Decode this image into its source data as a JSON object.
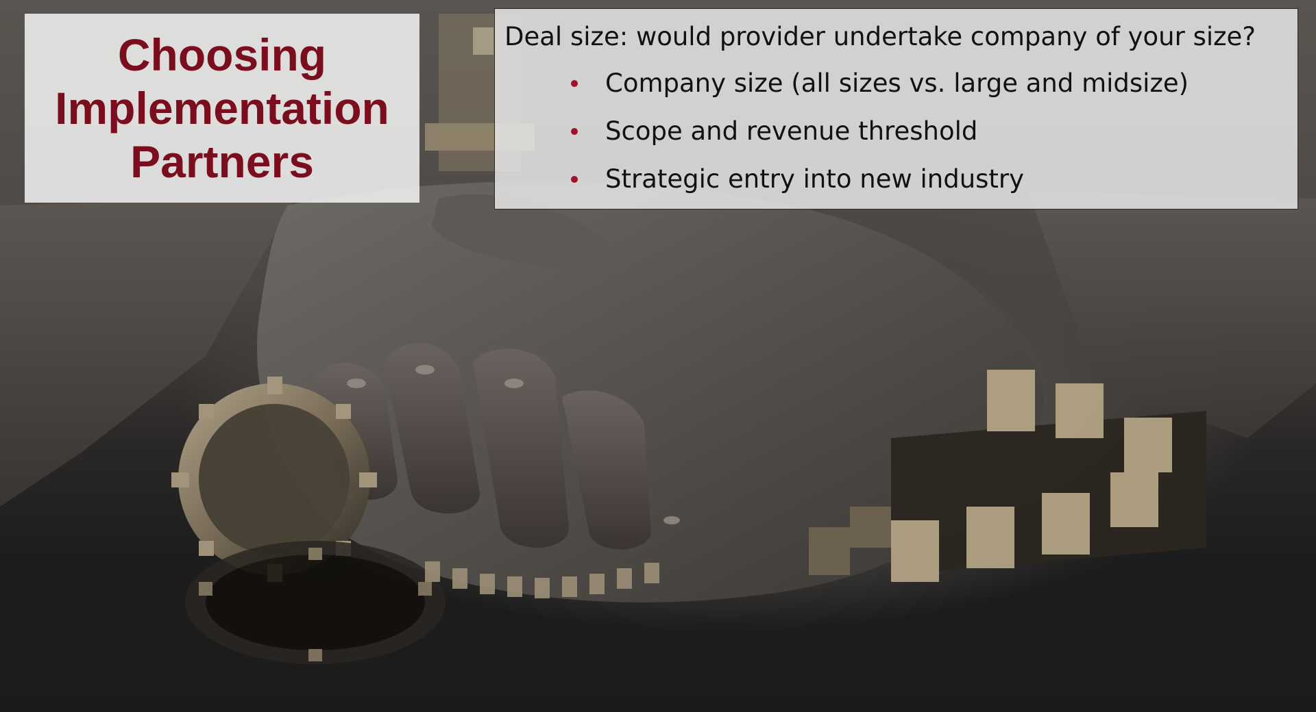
{
  "title": {
    "lines": [
      "Choosing",
      "Implementation",
      "Partners"
    ],
    "color": "#7a0e1e"
  },
  "content": {
    "headline": "Deal size: would provider undertake company of your size?",
    "bullets": [
      "Company size (all sizes vs. large and midsize)",
      "Scope and revenue threshold",
      "Strategic entry into new industry"
    ],
    "bullet_color": "#a0102a"
  },
  "background": {
    "image_description_icon": "handshake-gears-image"
  }
}
